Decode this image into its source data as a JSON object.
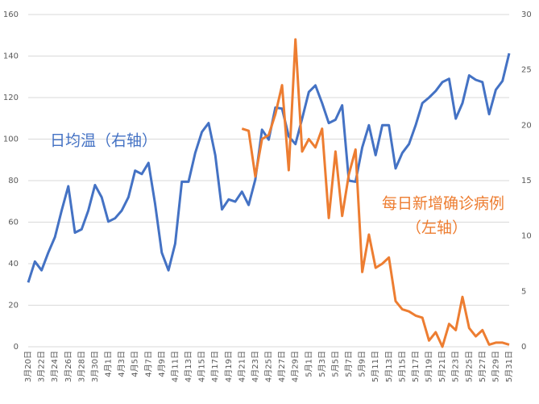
{
  "chart_data": {
    "type": "line",
    "categories": [
      "3月20日",
      null,
      "3月22日",
      null,
      "3月24日",
      null,
      "3月26日",
      null,
      "3月28日",
      null,
      "3月30日",
      null,
      "4月1日",
      null,
      "4月3日",
      null,
      "4月5日",
      null,
      "4月7日",
      null,
      "4月9日",
      null,
      "4月11日",
      null,
      "4月13日",
      null,
      "4月15日",
      null,
      "4月17日",
      null,
      "4月19日",
      null,
      "4月21日",
      null,
      "4月23日",
      null,
      "4月25日",
      null,
      "4月27日",
      null,
      "4月29日",
      null,
      "5月1日",
      null,
      "5月3日",
      null,
      "5月5日",
      null,
      "5月7日",
      null,
      "5月9日",
      null,
      "5月11日",
      null,
      "5月13日",
      null,
      "5月15日",
      null,
      "5月17日",
      null,
      "5月19日",
      null,
      "5月21日",
      null,
      "5月23日",
      null,
      "5月25日",
      null,
      "5月27日",
      null,
      "5月29日",
      null,
      "5月31日"
    ],
    "series": [
      {
        "name": "日均温",
        "color": "#4472c4",
        "axis": "y2",
        "values": [
          5.8,
          7.7,
          6.9,
          8.5,
          9.9,
          12.3,
          14.5,
          10.3,
          10.6,
          12.3,
          14.6,
          13.5,
          11.3,
          11.6,
          12.3,
          13.5,
          15.9,
          15.6,
          16.6,
          12.9,
          8.5,
          6.9,
          9.3,
          14.9,
          14.9,
          17.5,
          19.4,
          20.2,
          17.3,
          12.4,
          13.3,
          13.1,
          14.0,
          12.8,
          15.1,
          19.6,
          18.7,
          21.6,
          21.5,
          19.0,
          18.3,
          20.6,
          23.0,
          23.6,
          22.0,
          20.2,
          20.5,
          21.8,
          15.0,
          14.9,
          18.0,
          20.0,
          17.3,
          20.0,
          20.0,
          16.1,
          17.5,
          18.3,
          20.0,
          22.0,
          22.5,
          23.1,
          23.9,
          24.2,
          20.6,
          22.0,
          24.5,
          24.1,
          23.9,
          21.0,
          23.2,
          24.0,
          26.5
        ]
      },
      {
        "name": "每日新增确诊病例",
        "color": "#ed7d31",
        "values": [
          null,
          null,
          null,
          null,
          null,
          null,
          null,
          null,
          null,
          null,
          null,
          null,
          null,
          null,
          null,
          null,
          null,
          null,
          null,
          null,
          null,
          null,
          null,
          null,
          null,
          null,
          null,
          null,
          null,
          null,
          null,
          null,
          105,
          104,
          82,
          100,
          102,
          112,
          126,
          85,
          148,
          94,
          100,
          96,
          105,
          62,
          94,
          63,
          83,
          95,
          36,
          54,
          38,
          40,
          43,
          22,
          18,
          17,
          15,
          14,
          3,
          7,
          0,
          11,
          8,
          24,
          9,
          5,
          8,
          1,
          2,
          2,
          1
        ]
      }
    ],
    "ylim": [
      0,
      160
    ],
    "yticks": [
      0,
      20,
      40,
      60,
      80,
      100,
      120,
      140,
      160
    ],
    "y2lim": [
      0,
      30
    ],
    "y2ticks": [
      0,
      5,
      10,
      15,
      20,
      25,
      30
    ],
    "grid": true,
    "annotations": [
      {
        "text": "日均温（右轴）",
        "color": "#4472c4"
      },
      {
        "text": "每日新增确诊病例",
        "color": "#ed7d31"
      },
      {
        "text": "（左轴）",
        "color": "#ed7d31"
      }
    ]
  }
}
